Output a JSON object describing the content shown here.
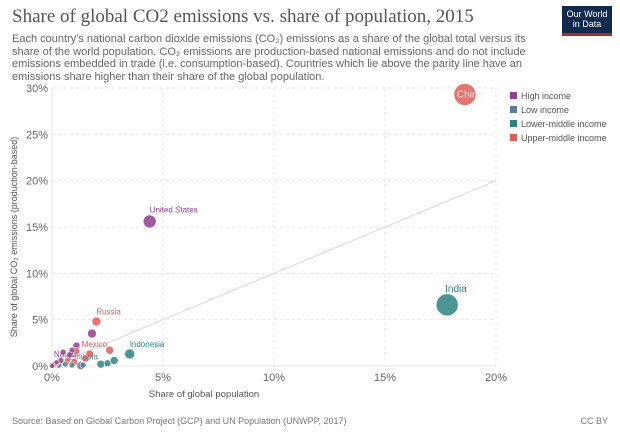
{
  "header": {
    "title": "Share of global CO2 emissions vs. share of population, 2015",
    "subtitle": "Each country's national carbon dioxide emissions (CO₂) emissions as a share of the global total versus its share of the world population. CO₂ emissions are production-based national emissions and do not include emissions embedded in trade (i.e. consumption-based). Countries which lie above the parity line have an emissions share higher than their share of the global population.",
    "logo_line1": "Our World",
    "logo_line2": "in Data"
  },
  "footer": {
    "source": "Source: Based on Global Carbon Project (GCP) and UN Population (UNWPP, 2017)",
    "license": "CC BY"
  },
  "chart_data": {
    "type": "scatter",
    "title": "Share of global CO2 emissions vs. share of population, 2015",
    "xlabel": "Share of global population",
    "ylabel": "Share of global CO₂ emissions (production-based)",
    "xlim": [
      0,
      20
    ],
    "ylim": [
      0,
      30
    ],
    "xticks": [
      0,
      5,
      10,
      15,
      20
    ],
    "yticks": [
      0,
      5,
      10,
      15,
      20,
      25,
      30
    ],
    "xtick_labels": [
      "0%",
      "5%",
      "10%",
      "15%",
      "20%"
    ],
    "ytick_labels": [
      "0%",
      "5%",
      "10%",
      "15%",
      "20%",
      "25%",
      "30%"
    ],
    "parity_line": true,
    "grid": true,
    "legend_position": "top-right",
    "groups": [
      {
        "name": "High income",
        "color": "#8f3f8e"
      },
      {
        "name": "Low income",
        "color": "#5e7c8e"
      },
      {
        "name": "Lower-middle income",
        "color": "#2c8383"
      },
      {
        "name": "Upper-middle income",
        "color": "#e05a56"
      }
    ],
    "points": [
      {
        "label": "China",
        "x": 18.6,
        "y": 29.3,
        "group": "Upper-middle income",
        "r": 11
      },
      {
        "label": "India",
        "x": 17.8,
        "y": 6.6,
        "group": "Lower-middle income",
        "r": 11
      },
      {
        "label": "United States",
        "x": 4.4,
        "y": 15.6,
        "group": "High income",
        "r": 6.5
      },
      {
        "label": "Russia",
        "x": 2.0,
        "y": 4.8,
        "group": "Upper-middle income",
        "r": 4.5
      },
      {
        "label": "Indonesia",
        "x": 3.5,
        "y": 1.3,
        "group": "Lower-middle income",
        "r": 5
      },
      {
        "label": "Mexico",
        "x": 1.7,
        "y": 1.3,
        "group": "Upper-middle income",
        "r": 4
      },
      {
        "label": "Ethiopia",
        "x": 1.3,
        "y": 0.03,
        "group": "Low income",
        "r": 4
      },
      {
        "label": "Nauru",
        "x": 0.0,
        "y": 0.0,
        "group": "High income",
        "r": 2.5
      },
      {
        "label": "",
        "x": 1.8,
        "y": 3.5,
        "group": "High income",
        "r": 4.5
      },
      {
        "label": "",
        "x": 1.1,
        "y": 2.2,
        "group": "High income",
        "r": 3.5
      },
      {
        "label": "",
        "x": 0.9,
        "y": 1.7,
        "group": "High income",
        "r": 3
      },
      {
        "label": "",
        "x": 0.5,
        "y": 1.5,
        "group": "High income",
        "r": 3
      },
      {
        "label": "",
        "x": 0.8,
        "y": 1.2,
        "group": "High income",
        "r": 3
      },
      {
        "label": "",
        "x": 1.1,
        "y": 1.6,
        "group": "Upper-middle income",
        "r": 3.5
      },
      {
        "label": "",
        "x": 2.6,
        "y": 1.7,
        "group": "Upper-middle income",
        "r": 4
      },
      {
        "label": "",
        "x": 2.8,
        "y": 0.6,
        "group": "Lower-middle income",
        "r": 4
      },
      {
        "label": "",
        "x": 2.2,
        "y": 0.2,
        "group": "Lower-middle income",
        "r": 4
      },
      {
        "label": "",
        "x": 2.5,
        "y": 0.3,
        "group": "Lower-middle income",
        "r": 3.5
      },
      {
        "label": "",
        "x": 1.0,
        "y": 0.4,
        "group": "Upper-middle income",
        "r": 3.5
      },
      {
        "label": "",
        "x": 0.7,
        "y": 0.6,
        "group": "Upper-middle income",
        "r": 3
      },
      {
        "label": "",
        "x": 1.5,
        "y": 0.8,
        "group": "Upper-middle income",
        "r": 3.5
      },
      {
        "label": "",
        "x": 0.6,
        "y": 0.2,
        "group": "Low income",
        "r": 3
      },
      {
        "label": "",
        "x": 0.9,
        "y": 0.1,
        "group": "Low income",
        "r": 3
      },
      {
        "label": "",
        "x": 1.4,
        "y": 0.1,
        "group": "Low income",
        "r": 3
      },
      {
        "label": "",
        "x": 0.3,
        "y": 0.1,
        "group": "Lower-middle income",
        "r": 3
      },
      {
        "label": "",
        "x": 0.2,
        "y": 0.3,
        "group": "Upper-middle income",
        "r": 3
      },
      {
        "label": "",
        "x": 0.1,
        "y": 0.2,
        "group": "Upper-middle income",
        "r": 3
      },
      {
        "label": "",
        "x": 0.4,
        "y": 0.6,
        "group": "High income",
        "r": 3
      },
      {
        "label": "",
        "x": 0.2,
        "y": 0.4,
        "group": "High income",
        "r": 2.5
      },
      {
        "label": "",
        "x": 0.05,
        "y": 0.1,
        "group": "Upper-middle income",
        "r": 3
      }
    ]
  }
}
